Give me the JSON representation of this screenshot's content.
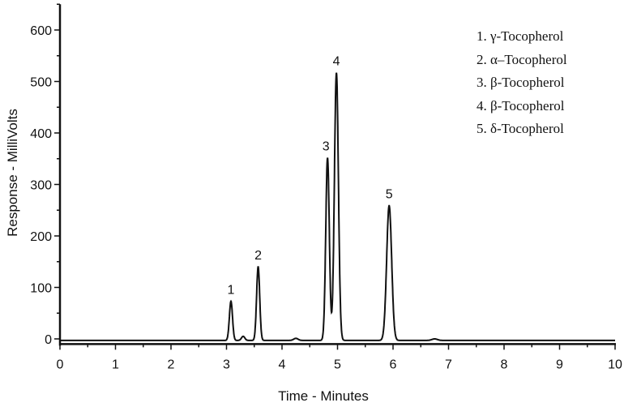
{
  "chart_data": {
    "type": "line",
    "title": "",
    "xlabel": "Time - Minutes",
    "ylabel": "Response - MilliVolts",
    "xlim": [
      0,
      10
    ],
    "ylim": [
      -10,
      650
    ],
    "xticks": [
      "0",
      "1",
      "2",
      "3",
      "4",
      "5",
      "6",
      "7",
      "8",
      "9",
      "10"
    ],
    "yticks": [
      "0",
      "100",
      "200",
      "300",
      "400",
      "500",
      "600"
    ],
    "grid": false,
    "legend_position": "top-right",
    "line_color": "#111111",
    "baseline": -3,
    "peaks": [
      {
        "label": "1",
        "time": 3.08,
        "height": 76,
        "sigma": 0.028
      },
      {
        "time": 3.3,
        "height": 8,
        "sigma": 0.03
      },
      {
        "label": "2",
        "time": 3.57,
        "height": 143,
        "sigma": 0.028
      },
      {
        "time": 4.25,
        "height": 4,
        "sigma": 0.04
      },
      {
        "label": "3",
        "time": 4.82,
        "height": 355,
        "sigma": 0.032
      },
      {
        "label": "4",
        "time": 4.98,
        "height": 520,
        "sigma": 0.036
      },
      {
        "label": "5",
        "time": 5.93,
        "height": 262,
        "sigma": 0.045
      },
      {
        "time": 6.75,
        "height": 3,
        "sigma": 0.05
      }
    ],
    "legend": [
      "1. γ-Tocopherol",
      "2. α–Tocopherol",
      "3. β-Tocopherol",
      "4. β-Tocopherol",
      "5. δ-Tocopherol"
    ]
  }
}
